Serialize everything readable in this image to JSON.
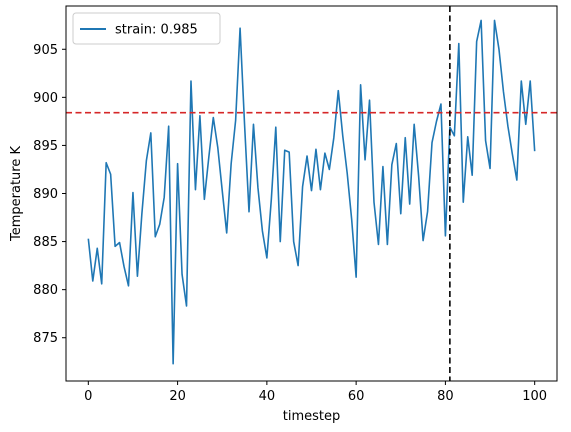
{
  "chart_data": {
    "type": "line",
    "xlabel": "timestep",
    "ylabel": "Temperature K",
    "xlim": [
      -5,
      105
    ],
    "ylim": [
      870.5,
      909.5
    ],
    "xticks": [
      0,
      20,
      40,
      60,
      80,
      100
    ],
    "yticks": [
      875,
      880,
      885,
      890,
      895,
      900,
      905
    ],
    "grid": false,
    "legend_position": "upper left",
    "series": [
      {
        "name": "strain: 0.985",
        "color": "#1f77b4",
        "x": [
          0,
          1,
          2,
          3,
          4,
          5,
          6,
          7,
          8,
          9,
          10,
          11,
          12,
          13,
          14,
          15,
          16,
          17,
          18,
          19,
          20,
          21,
          22,
          23,
          24,
          25,
          26,
          27,
          28,
          29,
          30,
          31,
          32,
          33,
          34,
          35,
          36,
          37,
          38,
          39,
          40,
          41,
          42,
          43,
          44,
          45,
          46,
          47,
          48,
          49,
          50,
          51,
          52,
          53,
          54,
          55,
          56,
          57,
          58,
          59,
          60,
          61,
          62,
          63,
          64,
          65,
          66,
          67,
          68,
          69,
          70,
          71,
          72,
          73,
          74,
          75,
          76,
          77,
          78,
          79,
          80,
          81,
          82,
          83,
          84,
          85,
          86,
          87,
          88,
          89,
          90,
          91,
          92,
          93,
          94,
          95,
          96,
          97,
          98,
          99,
          100
        ],
        "y": [
          885.3,
          880.9,
          884.3,
          880.6,
          893.2,
          892.0,
          884.5,
          884.9,
          882.4,
          880.4,
          890.1,
          881.4,
          887.9,
          893.4,
          896.3,
          885.5,
          886.8,
          889.6,
          897.0,
          872.3,
          893.1,
          881.6,
          878.3,
          901.7,
          890.4,
          898.1,
          889.4,
          893.8,
          897.9,
          894.8,
          890.3,
          885.9,
          893.1,
          897.6,
          907.2,
          897.2,
          888.1,
          897.2,
          890.6,
          886.1,
          883.3,
          889.4,
          896.9,
          885.0,
          894.5,
          894.3,
          885.0,
          882.5,
          890.7,
          893.9,
          890.3,
          894.6,
          890.4,
          894.2,
          892.5,
          895.8,
          900.7,
          896.0,
          892.1,
          887.3,
          881.3,
          901.3,
          893.5,
          899.7,
          889.1,
          884.7,
          892.8,
          884.7,
          893.0,
          895.2,
          887.9,
          895.8,
          888.9,
          897.2,
          891.8,
          885.1,
          888.1,
          895.3,
          897.5,
          899.3,
          885.6,
          896.9,
          896.0,
          905.6,
          889.1,
          895.9,
          891.9,
          905.8,
          908.0,
          895.5,
          892.6,
          908.0,
          905.0,
          900.6,
          897.0,
          894.1,
          891.4,
          901.7,
          897.2,
          901.7,
          894.4
        ]
      }
    ],
    "reference_lines": [
      {
        "orientation": "horizontal",
        "value": 898.4,
        "color": "#d62728",
        "style": "dashed"
      },
      {
        "orientation": "vertical",
        "value": 81,
        "color": "#000000",
        "style": "dashed"
      }
    ]
  }
}
